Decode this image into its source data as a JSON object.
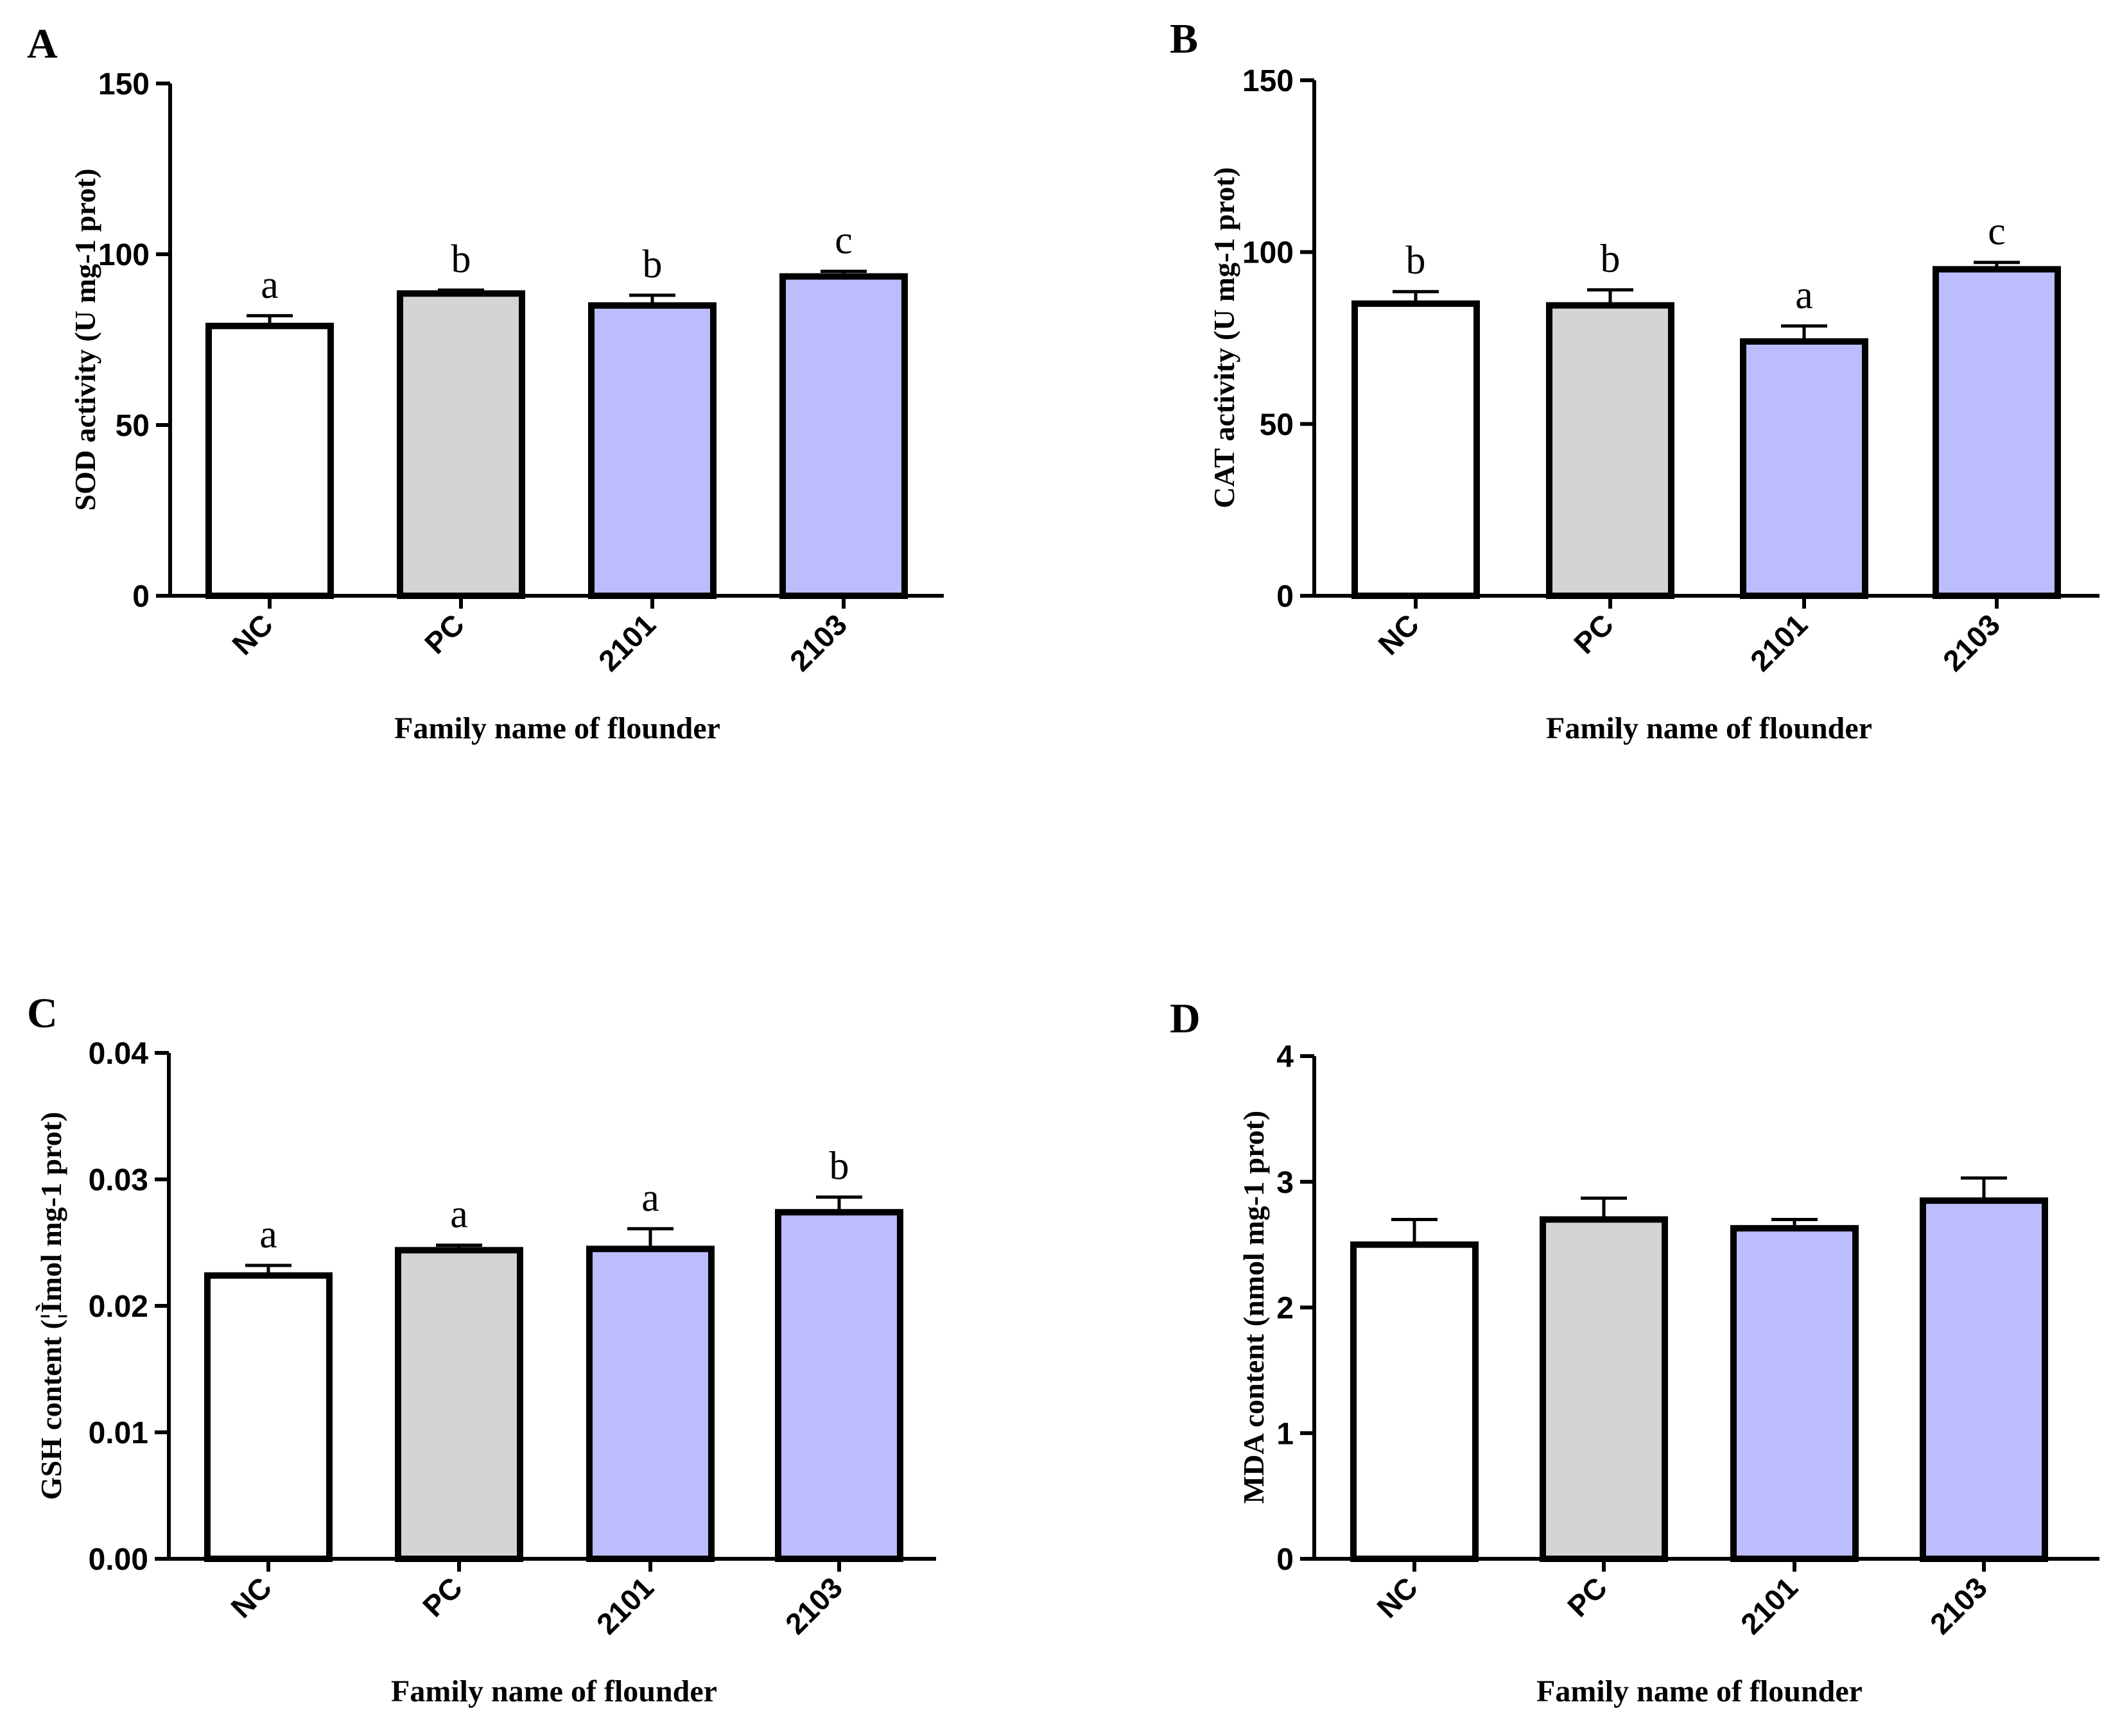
{
  "chart_data": [
    {
      "panel": "A",
      "type": "bar",
      "categories": [
        "NC",
        "PC",
        "2101",
        "2103"
      ],
      "values": [
        79,
        88.5,
        85,
        93.5
      ],
      "errors": [
        3,
        1,
        3,
        1.5
      ],
      "letters": [
        "a",
        "b",
        "b",
        "c"
      ],
      "colors": [
        "#ffffff",
        "#d4d4d4",
        "#bdbdfd",
        "#bdbdfd"
      ],
      "ylabel": "SOD activity (U mg-1 prot)",
      "xlabel": "Family name of flounder",
      "ylim": [
        0,
        150
      ],
      "yticks": [
        "0",
        "50",
        "100",
        "150"
      ],
      "ytick_values": [
        0,
        50,
        100,
        150
      ]
    },
    {
      "panel": "B",
      "type": "bar",
      "categories": [
        "NC",
        "PC",
        "2101",
        "2103"
      ],
      "values": [
        85,
        84.5,
        74,
        95
      ],
      "errors": [
        3.5,
        4.5,
        4.5,
        2
      ],
      "letters": [
        "b",
        "b",
        "a",
        "c"
      ],
      "colors": [
        "#ffffff",
        "#d4d4d4",
        "#bdbdfd",
        "#bdbdfd"
      ],
      "ylabel": "CAT activity (U mg-1 prot)",
      "xlabel": "Family name of flounder",
      "ylim": [
        0,
        150
      ],
      "yticks": [
        "0",
        "50",
        "100",
        "150"
      ],
      "ytick_values": [
        0,
        50,
        100,
        150
      ]
    },
    {
      "panel": "C",
      "type": "bar",
      "categories": [
        "NC",
        "PC",
        "2101",
        "2103"
      ],
      "values": [
        0.0224,
        0.0244,
        0.0245,
        0.0274
      ],
      "errors": [
        0.0008,
        0.0004,
        0.0016,
        0.0012
      ],
      "letters": [
        "a",
        "a",
        "a",
        "b"
      ],
      "colors": [
        "#ffffff",
        "#d4d4d4",
        "#bdbdfd",
        "#bdbdfd"
      ],
      "ylabel": "GSH content (¦Ìmol mg-1 prot)",
      "xlabel": "Family name of flounder",
      "ylim": [
        0,
        0.04
      ],
      "yticks": [
        "0.00",
        "0.01",
        "0.02",
        "0.03",
        "0.04"
      ],
      "ytick_values": [
        0,
        0.01,
        0.02,
        0.03,
        0.04
      ]
    },
    {
      "panel": "D",
      "type": "bar",
      "categories": [
        "NC",
        "PC",
        "2101",
        "2103"
      ],
      "values": [
        2.5,
        2.7,
        2.63,
        2.85
      ],
      "errors": [
        0.2,
        0.17,
        0.07,
        0.18
      ],
      "letters": [
        "",
        "",
        "",
        ""
      ],
      "colors": [
        "#ffffff",
        "#d4d4d4",
        "#bdbdfd",
        "#bdbdfd"
      ],
      "ylabel": "MDA content (nmol mg-1 prot)",
      "xlabel": "Family name of flounder",
      "ylim": [
        0,
        4
      ],
      "yticks": [
        "0",
        "1",
        "2",
        "3",
        "4"
      ],
      "ytick_values": [
        0,
        1,
        2,
        3,
        4
      ]
    }
  ]
}
